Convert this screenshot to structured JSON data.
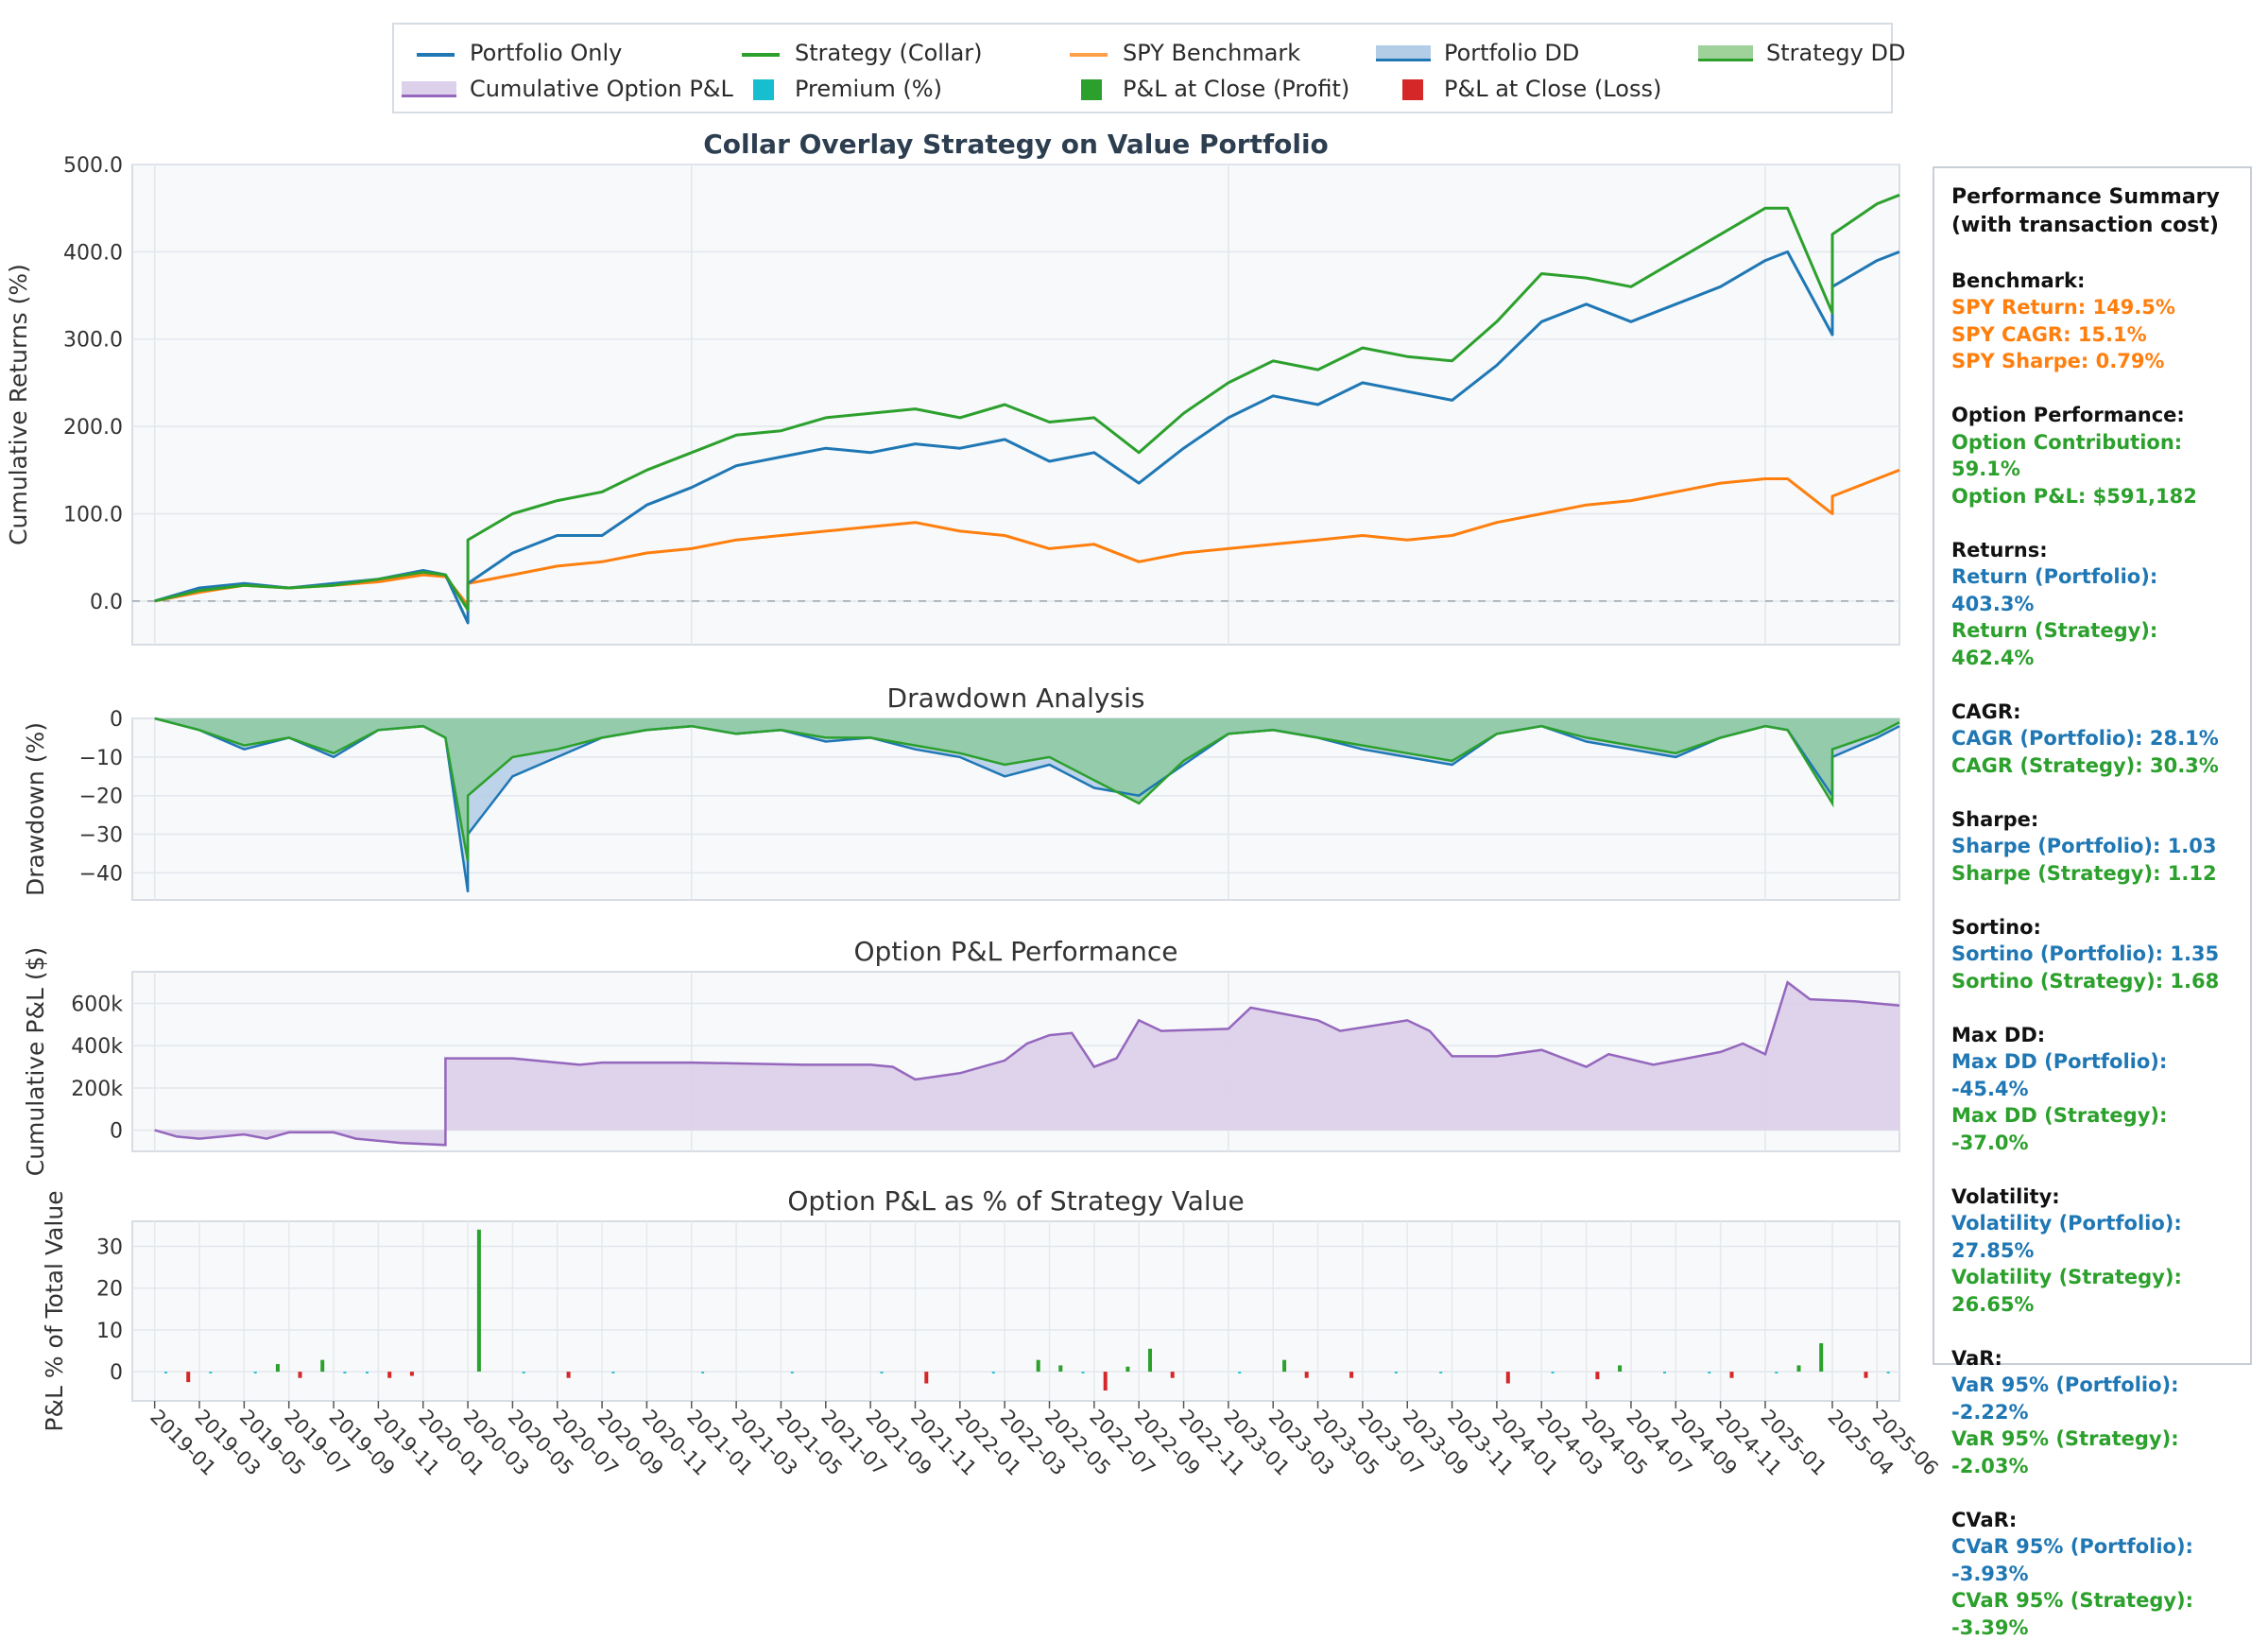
{
  "legend": {
    "items": [
      {
        "label": "Portfolio Only",
        "kind": "line",
        "color": "#1f77b4"
      },
      {
        "label": "Strategy (Collar)",
        "kind": "line",
        "color": "#2ca02c"
      },
      {
        "label": "SPY Benchmark",
        "kind": "line",
        "color": "#ff7f0e"
      },
      {
        "label": "Portfolio DD",
        "kind": "area",
        "color": "#1f77b4"
      },
      {
        "label": "Strategy DD",
        "kind": "area",
        "color": "#2ca02c"
      },
      {
        "label": "Cumulative Option P&L",
        "kind": "area",
        "color": "#9467bd"
      },
      {
        "label": "Premium (%)",
        "kind": "square",
        "color": "#17becf"
      },
      {
        "label": "P&L at Close (Profit)",
        "kind": "square",
        "color": "#2ca02c"
      },
      {
        "label": "P&L at Close (Loss)",
        "kind": "square",
        "color": "#d62728"
      }
    ]
  },
  "summary": {
    "title1": "Performance Summary",
    "title2": "(with transaction cost)",
    "benchmark_head": "Benchmark:",
    "spy_return": "SPY Return: 149.5%",
    "spy_cagr": "SPY CAGR: 15.1%",
    "spy_sharpe": "SPY Sharpe: 0.79%",
    "option_head": "Option Performance:",
    "option_contrib": "Option Contribution: 59.1%",
    "option_pnl": "Option P&L: $591,182",
    "returns_head": "Returns:",
    "return_port": "Return (Portfolio): 403.3%",
    "return_strat": "Return (Strategy): 462.4%",
    "cagr_head": "CAGR:",
    "cagr_port": "CAGR (Portfolio): 28.1%",
    "cagr_strat": "CAGR (Strategy): 30.3%",
    "sharpe_head": "Sharpe:",
    "sharpe_port": "Sharpe (Portfolio): 1.03",
    "sharpe_strat": "Sharpe (Strategy): 1.12",
    "sortino_head": "Sortino:",
    "sortino_port": "Sortino (Portfolio): 1.35",
    "sortino_strat": "Sortino (Strategy): 1.68",
    "maxdd_head": "Max DD:",
    "maxdd_port": "Max DD (Portfolio): -45.4%",
    "maxdd_strat": "Max DD (Strategy): -37.0%",
    "vol_head": "Volatility:",
    "vol_port": "Volatility (Portfolio): 27.85%",
    "vol_strat": "Volatility (Strategy): 26.65%",
    "var_head": "VaR:",
    "var_port": "VaR 95% (Portfolio): -2.22%",
    "var_strat": "VaR 95% (Strategy): -2.03%",
    "cvar_head": "CVaR:",
    "cvar_port": "CVaR 95% (Portfolio): -3.93%",
    "cvar_strat": "CVaR 95% (Strategy): -3.39%"
  },
  "chart_data": [
    {
      "type": "line",
      "title": "Collar Overlay Strategy on Value Portfolio",
      "xlabel": "",
      "ylabel": "Cumulative Returns (%)",
      "ylim": [
        -50,
        500
      ],
      "yticks": [
        "0.0",
        "100.0",
        "200.0",
        "300.0",
        "400.0",
        "500.0"
      ],
      "ytick_values": [
        0,
        100,
        200,
        300,
        400,
        500
      ],
      "x_range": [
        "2018-12",
        "2025-07"
      ],
      "x": [
        "2019-01",
        "2019-03",
        "2019-05",
        "2019-07",
        "2019-09",
        "2019-11",
        "2020-01",
        "2020-02",
        "2020-03",
        "2020-03",
        "2020-05",
        "2020-07",
        "2020-09",
        "2020-11",
        "2021-01",
        "2021-03",
        "2021-05",
        "2021-07",
        "2021-09",
        "2021-11",
        "2022-01",
        "2022-03",
        "2022-05",
        "2022-07",
        "2022-09",
        "2022-11",
        "2023-01",
        "2023-03",
        "2023-05",
        "2023-07",
        "2023-09",
        "2023-11",
        "2024-01",
        "2024-03",
        "2024-05",
        "2024-07",
        "2024-09",
        "2024-11",
        "2025-01",
        "2025-02",
        "2025-04",
        "2025-04",
        "2025-06",
        "2025-07"
      ],
      "series": [
        {
          "name": "Portfolio Only",
          "color": "#1f77b4",
          "values": [
            0,
            15,
            20,
            15,
            20,
            25,
            35,
            30,
            -25,
            20,
            55,
            75,
            75,
            110,
            130,
            155,
            165,
            175,
            170,
            180,
            175,
            185,
            160,
            170,
            135,
            175,
            210,
            235,
            225,
            250,
            240,
            230,
            270,
            320,
            340,
            320,
            340,
            360,
            390,
            400,
            305,
            360,
            390,
            400
          ]
        },
        {
          "name": "Strategy (Collar)",
          "color": "#2ca02c",
          "values": [
            0,
            12,
            18,
            15,
            18,
            25,
            33,
            30,
            -10,
            70,
            100,
            115,
            125,
            150,
            170,
            190,
            195,
            210,
            215,
            220,
            210,
            225,
            205,
            210,
            170,
            215,
            250,
            275,
            265,
            290,
            280,
            275,
            320,
            375,
            370,
            360,
            390,
            420,
            450,
            450,
            330,
            420,
            455,
            465
          ]
        },
        {
          "name": "SPY Benchmark",
          "color": "#ff7f0e",
          "values": [
            0,
            10,
            18,
            15,
            18,
            22,
            30,
            28,
            -5,
            20,
            30,
            40,
            45,
            55,
            60,
            70,
            75,
            80,
            85,
            90,
            80,
            75,
            60,
            65,
            45,
            55,
            60,
            65,
            70,
            75,
            70,
            75,
            90,
            100,
            110,
            115,
            125,
            135,
            140,
            140,
            100,
            120,
            140,
            150
          ]
        }
      ]
    },
    {
      "type": "area",
      "title": "Drawdown Analysis",
      "ylabel": "Drawdown (%)",
      "ylim": [
        -47,
        0
      ],
      "yticks": [
        "0",
        "−10",
        "−20",
        "−30",
        "−40"
      ],
      "ytick_values": [
        0,
        -10,
        -20,
        -30,
        -40
      ],
      "x": [
        "2019-01",
        "2019-03",
        "2019-05",
        "2019-07",
        "2019-09",
        "2019-11",
        "2020-01",
        "2020-02",
        "2020-03",
        "2020-03",
        "2020-05",
        "2020-07",
        "2020-09",
        "2020-11",
        "2021-01",
        "2021-03",
        "2021-05",
        "2021-07",
        "2021-09",
        "2021-11",
        "2022-01",
        "2022-03",
        "2022-05",
        "2022-07",
        "2022-09",
        "2022-11",
        "2023-01",
        "2023-03",
        "2023-05",
        "2023-07",
        "2023-09",
        "2023-11",
        "2024-01",
        "2024-03",
        "2024-05",
        "2024-07",
        "2024-09",
        "2024-11",
        "2025-01",
        "2025-02",
        "2025-04",
        "2025-04",
        "2025-06",
        "2025-07"
      ],
      "series": [
        {
          "name": "Portfolio DD",
          "color": "#1f77b4",
          "values": [
            0,
            -3,
            -8,
            -5,
            -10,
            -3,
            -2,
            -5,
            -45,
            -30,
            -15,
            -10,
            -5,
            -3,
            -2,
            -4,
            -3,
            -6,
            -5,
            -8,
            -10,
            -15,
            -12,
            -18,
            -20,
            -12,
            -4,
            -3,
            -5,
            -8,
            -10,
            -12,
            -4,
            -2,
            -6,
            -8,
            -10,
            -5,
            -2,
            -3,
            -20,
            -10,
            -5,
            -2
          ]
        },
        {
          "name": "Strategy DD",
          "color": "#2ca02c",
          "values": [
            0,
            -3,
            -7,
            -5,
            -9,
            -3,
            -2,
            -5,
            -37,
            -20,
            -10,
            -8,
            -5,
            -3,
            -2,
            -4,
            -3,
            -5,
            -5,
            -7,
            -9,
            -12,
            -10,
            -16,
            -22,
            -11,
            -4,
            -3,
            -5,
            -7,
            -9,
            -11,
            -4,
            -2,
            -5,
            -7,
            -9,
            -5,
            -2,
            -3,
            -22,
            -8,
            -4,
            -1
          ]
        }
      ]
    },
    {
      "type": "area",
      "title": "Option P&L Performance",
      "ylabel": "Cumulative P&L ($)",
      "ylim": [
        -100000,
        750000
      ],
      "yticks": [
        "0",
        "200k",
        "400k",
        "600k"
      ],
      "ytick_values": [
        0,
        200000,
        400000,
        600000
      ],
      "x": [
        "2019-01",
        "2019-02",
        "2019-03",
        "2019-05",
        "2019-06",
        "2019-07",
        "2019-09",
        "2019-10",
        "2019-12",
        "2020-02",
        "2020-02",
        "2020-05",
        "2020-06",
        "2020-08",
        "2020-09",
        "2021-01",
        "2021-06",
        "2021-09",
        "2021-10",
        "2021-11",
        "2022-01",
        "2022-02",
        "2022-03",
        "2022-04",
        "2022-05",
        "2022-06",
        "2022-07",
        "2022-08",
        "2022-09",
        "2022-10",
        "2023-01",
        "2023-02",
        "2023-05",
        "2023-06",
        "2023-09",
        "2023-10",
        "2023-11",
        "2024-01",
        "2024-03",
        "2024-05",
        "2024-06",
        "2024-08",
        "2024-09",
        "2024-11",
        "2024-12",
        "2025-01",
        "2025-02",
        "2025-03",
        "2025-05",
        "2025-07"
      ],
      "series": [
        {
          "name": "Cumulative Option P&L",
          "color": "#9467bd",
          "values": [
            0,
            -30000,
            -40000,
            -20000,
            -40000,
            -10000,
            -10000,
            -40000,
            -60000,
            -70000,
            340000,
            340000,
            330000,
            310000,
            320000,
            320000,
            310000,
            310000,
            300000,
            240000,
            270000,
            300000,
            330000,
            410000,
            450000,
            460000,
            300000,
            340000,
            520000,
            470000,
            480000,
            580000,
            520000,
            470000,
            520000,
            470000,
            350000,
            350000,
            380000,
            300000,
            360000,
            310000,
            330000,
            370000,
            410000,
            360000,
            700000,
            620000,
            610000,
            590000
          ]
        }
      ]
    },
    {
      "type": "bar",
      "title": "Option P&L as % of Strategy Value",
      "ylabel": "P&L % of Total Value",
      "ylim": [
        -7,
        36
      ],
      "yticks": [
        "0",
        "10",
        "20",
        "30"
      ],
      "ytick_values": [
        0,
        10,
        20,
        30
      ],
      "xticks": [
        "2019-01",
        "2019-03",
        "2019-05",
        "2019-07",
        "2019-09",
        "2019-11",
        "2020-01",
        "2020-03",
        "2020-05",
        "2020-07",
        "2020-09",
        "2020-11",
        "2021-01",
        "2021-03",
        "2021-05",
        "2021-07",
        "2021-09",
        "2021-11",
        "2022-01",
        "2022-03",
        "2022-05",
        "2022-07",
        "2022-09",
        "2022-11",
        "2023-01",
        "2023-03",
        "2023-05",
        "2023-07",
        "2023-09",
        "2023-11",
        "2024-01",
        "2024-03",
        "2024-05",
        "2024-07",
        "2024-09",
        "2024-11",
        "2025-01",
        "2025-04",
        "2025-06"
      ],
      "series": [
        {
          "name": "P&L at Close (Profit)",
          "color": "#2ca02c",
          "x": [
            "2019-06",
            "2019-08",
            "2020-03",
            "2022-04",
            "2022-05",
            "2022-08",
            "2022-09",
            "2023-03",
            "2024-06",
            "2025-02",
            "2025-03"
          ],
          "values": [
            1.8,
            2.8,
            34,
            2.8,
            1.5,
            1.2,
            5.5,
            2.8,
            1.5,
            1.5,
            6.8
          ]
        },
        {
          "name": "P&L at Close (Loss)",
          "color": "#d62728",
          "x": [
            "2019-02",
            "2019-07",
            "2019-11",
            "2019-12",
            "2020-07",
            "2021-11",
            "2022-07",
            "2022-10",
            "2023-04",
            "2023-06",
            "2024-01",
            "2024-05",
            "2024-11",
            "2025-05"
          ],
          "values": [
            -2.5,
            -1.5,
            -1.5,
            -1.0,
            -1.5,
            -2.8,
            -4.5,
            -1.5,
            -1.5,
            -1.5,
            -2.8,
            -1.8,
            -1.5,
            -1.5
          ]
        },
        {
          "name": "Premium (%)",
          "color": "#17becf",
          "x": [
            "2019-01",
            "2019-03",
            "2019-05",
            "2019-09",
            "2019-10",
            "2020-05",
            "2020-09",
            "2021-01",
            "2021-05",
            "2021-09",
            "2022-02",
            "2022-06",
            "2023-01",
            "2023-08",
            "2023-10",
            "2024-03",
            "2024-08",
            "2024-10",
            "2025-01",
            "2025-06"
          ],
          "values": [
            -0.4,
            -0.4,
            -0.4,
            -0.4,
            -0.4,
            -0.4,
            -0.4,
            -0.4,
            -0.4,
            -0.4,
            -0.4,
            -0.4,
            -0.4,
            -0.4,
            -0.4,
            -0.4,
            -0.4,
            -0.4,
            -0.4,
            -0.4
          ]
        }
      ]
    }
  ]
}
